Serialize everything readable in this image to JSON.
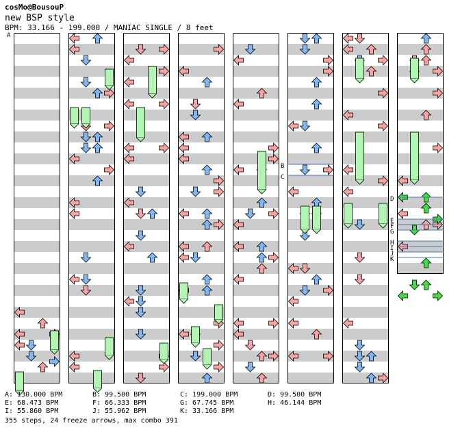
{
  "header": {
    "artist": "cosMo@BousouP",
    "title": "new BSP style",
    "info": "BPM: 33.166 - 199.000 / MANIAC SINGLE / 8 feet"
  },
  "colors": {
    "arrow_red": "#f7a3a3",
    "arrow_blue": "#7fb9f5",
    "arrow_pink": "#f5b3f5",
    "freeze": "#b2f5b2",
    "shock_green": "#44dd44",
    "stripe_gray": "#cccccc",
    "bpm_line": "#4477bb"
  },
  "bpm_legend": [
    "A: 130.000 BPM",
    "B: 99.500 BPM",
    "C: 199.000 BPM",
    "D: 99.500 BPM",
    "E: 68.473 BPM",
    "F: 66.333 BPM",
    "G: 67.745 BPM",
    "H: 46.144 BPM",
    "I: 55.860 BPM",
    "J: 55.962 BPM",
    "K: 33.166 BPM"
  ],
  "bpm_markers": [
    "A",
    "B",
    "C",
    "D",
    "E",
    "F",
    "G",
    "H",
    "I",
    "J",
    "K"
  ],
  "summary": "355 steps, 24 freeze arrows, max combo 391"
}
